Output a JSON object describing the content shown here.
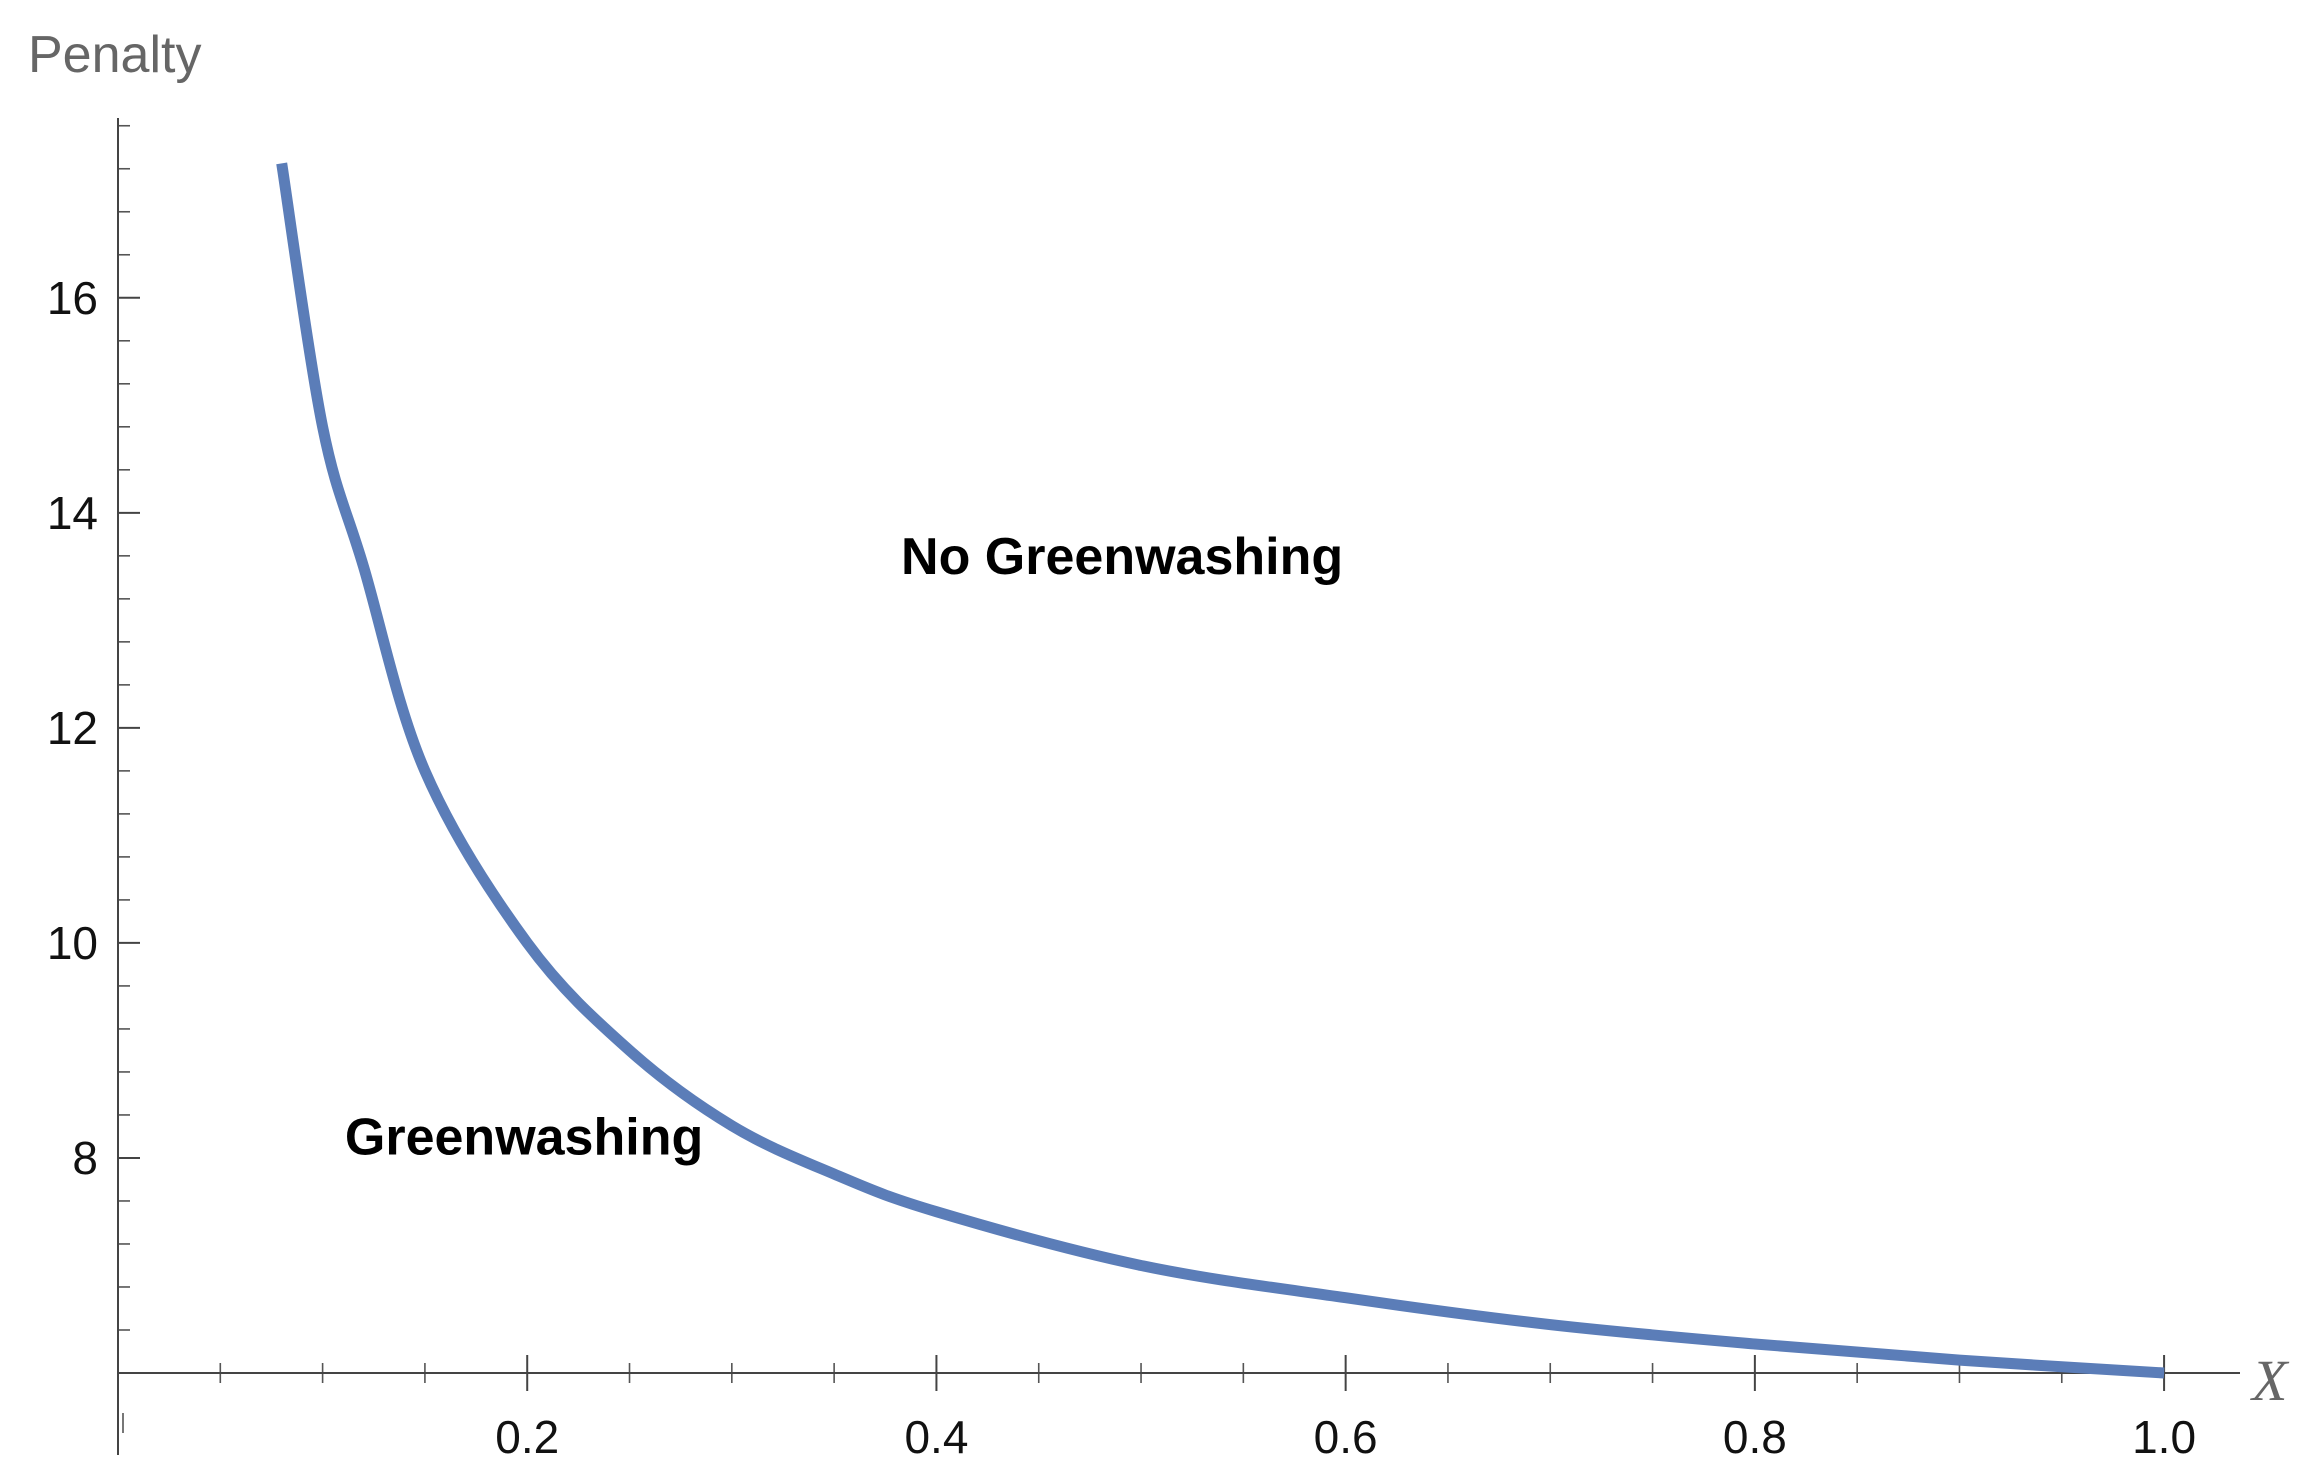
{
  "chart_data": {
    "type": "line",
    "title": "",
    "xlabel": "X",
    "ylabel": "Penalty",
    "xlim": [
      0.0,
      1.02
    ],
    "ylim": [
      6.0,
      17.7
    ],
    "x_ticks": [
      0.2,
      0.4,
      0.6,
      0.8,
      1.0
    ],
    "x_tick_labels": [
      "0.2",
      "0.4",
      "0.6",
      "0.8",
      "1.0"
    ],
    "y_ticks": [
      8,
      10,
      12,
      14,
      16
    ],
    "y_tick_labels": [
      "8",
      "10",
      "12",
      "14",
      "16"
    ],
    "grid": false,
    "legend": "none",
    "series": [
      {
        "color": "#5b7db8",
        "x": [
          0.08,
          0.1,
          0.12,
          0.15,
          0.2,
          0.25,
          0.3,
          0.35,
          0.4,
          0.5,
          0.6,
          0.7,
          0.8,
          0.9,
          1.0
        ],
        "y": [
          17.25,
          14.8,
          13.5,
          11.6,
          10.0,
          9.0,
          8.3,
          7.85,
          7.5,
          7.0,
          6.7,
          6.45,
          6.27,
          6.12,
          6.0
        ]
      }
    ],
    "annotations": [
      {
        "text": "No Greenwashing",
        "x": 0.5,
        "y": 13.6
      },
      {
        "text": "Greenwashing",
        "x": 0.15,
        "y": 8.2
      }
    ]
  }
}
